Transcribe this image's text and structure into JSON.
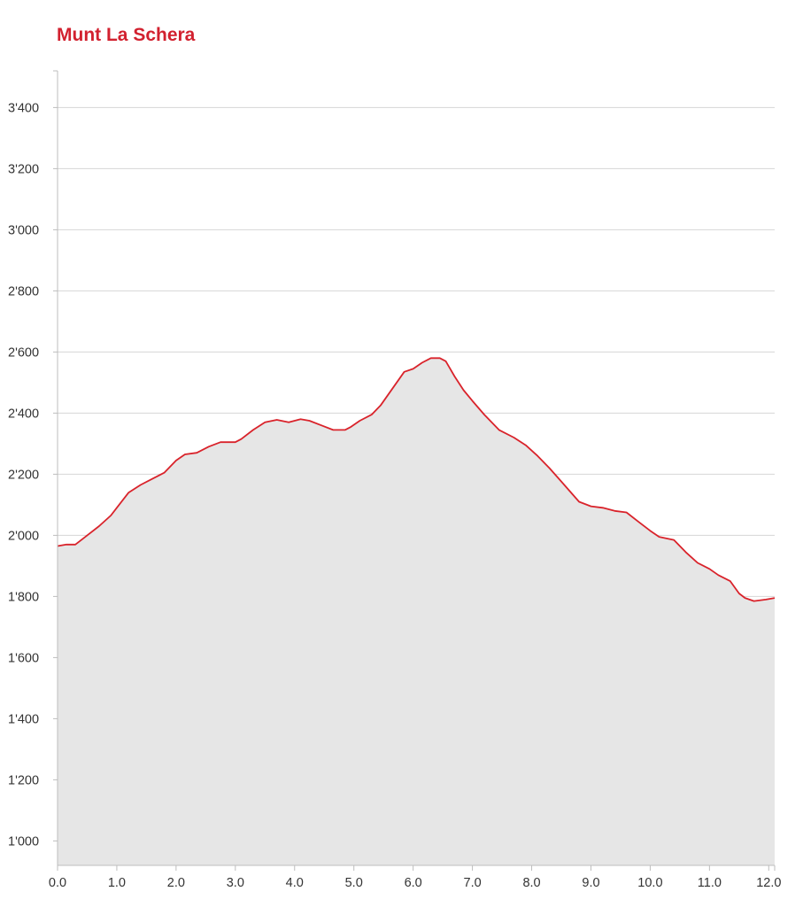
{
  "title": "Munt La Schera",
  "colors": {
    "title": "#d2212f",
    "line": "#d9232b",
    "area": "#e6e6e6",
    "grid": "#d6d6d6",
    "axis": "#bdbdbd"
  },
  "chart_data": {
    "type": "area",
    "title": "Munt La Schera",
    "xlabel": "",
    "ylabel": "",
    "xlim": [
      0,
      12.1
    ],
    "ylim": [
      920,
      3520
    ],
    "grid": "horizontal",
    "x_ticks": [
      0,
      1,
      2,
      3,
      4,
      5,
      6,
      7,
      8,
      9,
      10,
      11,
      12
    ],
    "x_tick_labels": [
      "0.0",
      "1.0",
      "2.0",
      "3.0",
      "4.0",
      "5.0",
      "6.0",
      "7.0",
      "8.0",
      "9.0",
      "10.0",
      "11.0",
      "12.0"
    ],
    "y_ticks": [
      1000,
      1200,
      1400,
      1600,
      1800,
      2000,
      2200,
      2400,
      2600,
      2800,
      3000,
      3200,
      3400
    ],
    "y_tick_labels": [
      "1'000",
      "1'200",
      "1'400",
      "1'600",
      "1'800",
      "2'000",
      "2'200",
      "2'400",
      "2'600",
      "2'800",
      "3'000",
      "3'200",
      "3'400"
    ],
    "series": [
      {
        "x": [
          0,
          0.15,
          0.3,
          0.5,
          0.7,
          0.9,
          1.0,
          1.2,
          1.4,
          1.6,
          1.8,
          2.0,
          2.15,
          2.35,
          2.55,
          2.75,
          3.0,
          3.1,
          3.3,
          3.5,
          3.7,
          3.9,
          4.1,
          4.25,
          4.45,
          4.65,
          4.85,
          4.95,
          5.1,
          5.3,
          5.45,
          5.65,
          5.85,
          6.0,
          6.15,
          6.3,
          6.45,
          6.55,
          6.7,
          6.85,
          7.0,
          7.2,
          7.45,
          7.7,
          7.9,
          8.1,
          8.3,
          8.55,
          8.8,
          9.0,
          9.2,
          9.4,
          9.6,
          9.8,
          10.0,
          10.15,
          10.4,
          10.6,
          10.8,
          11.0,
          11.15,
          11.35,
          11.5,
          11.6,
          11.75,
          11.95,
          12.1
        ],
        "y": [
          1965,
          1970,
          1970,
          2000,
          2030,
          2065,
          2090,
          2140,
          2165,
          2185,
          2205,
          2245,
          2265,
          2270,
          2290,
          2305,
          2305,
          2315,
          2345,
          2370,
          2378,
          2370,
          2380,
          2375,
          2360,
          2345,
          2345,
          2355,
          2375,
          2395,
          2425,
          2480,
          2535,
          2545,
          2565,
          2580,
          2580,
          2570,
          2520,
          2475,
          2440,
          2395,
          2345,
          2320,
          2295,
          2260,
          2220,
          2165,
          2110,
          2095,
          2090,
          2080,
          2075,
          2045,
          2015,
          1995,
          1985,
          1945,
          1910,
          1890,
          1870,
          1850,
          1810,
          1795,
          1785,
          1790,
          1795
        ]
      }
    ]
  }
}
